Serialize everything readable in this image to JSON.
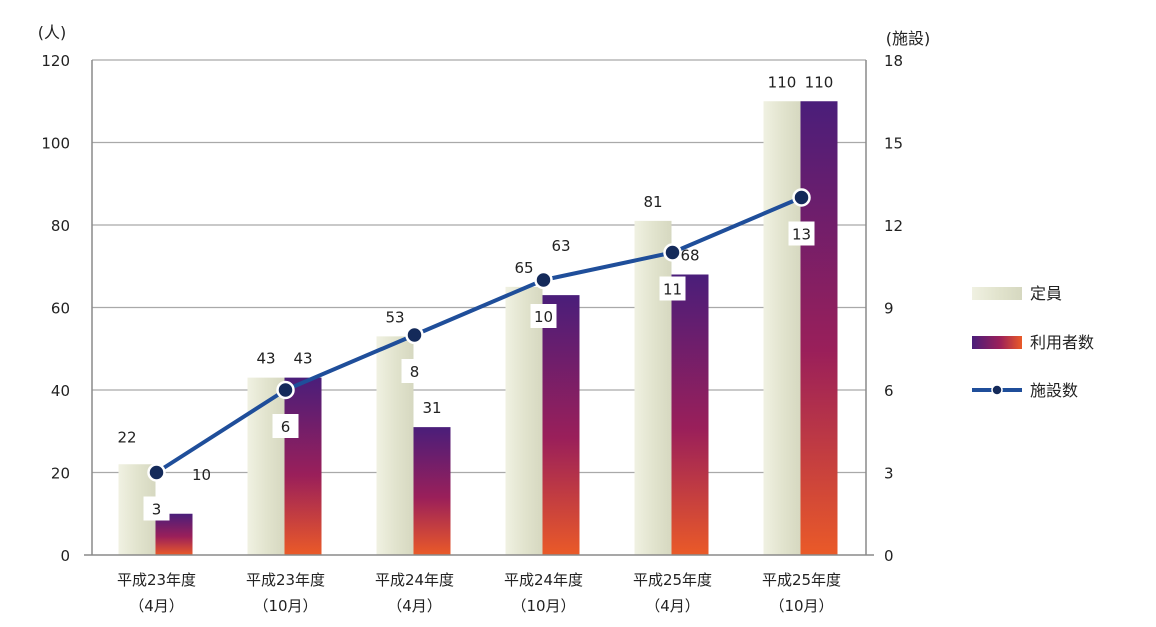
{
  "chart_data": {
    "type": "bar",
    "categories": [
      [
        "平成23年度",
        "（4月）"
      ],
      [
        "平成23年度",
        "（10月）"
      ],
      [
        "平成24年度",
        "（4月）"
      ],
      [
        "平成24年度",
        "（10月）"
      ],
      [
        "平成25年度",
        "（4月）"
      ],
      [
        "平成25年度",
        "（10月）"
      ]
    ],
    "y_left_label": "(人)",
    "y_right_label": "(施設)",
    "y_left_lim": [
      0,
      120
    ],
    "y_left_ticks": [
      0,
      20,
      40,
      60,
      80,
      100,
      120
    ],
    "y_right_lim": [
      0,
      18
    ],
    "y_right_ticks": [
      0,
      3,
      6,
      9,
      12,
      15,
      18
    ],
    "grid": true,
    "legend_position": "right",
    "series": [
      {
        "name": "定員",
        "kind": "bar",
        "axis": "left",
        "values": [
          22,
          43,
          53,
          65,
          81,
          110
        ],
        "color": "#e6e8d4"
      },
      {
        "name": "利用者数",
        "kind": "bar",
        "axis": "left",
        "values": [
          10,
          43,
          31,
          63,
          68,
          110
        ],
        "color_top": "#4a1e7a",
        "color_bottom": "#e84a2a"
      },
      {
        "name": "施設数",
        "kind": "line",
        "axis": "right",
        "values": [
          3,
          6,
          8,
          10,
          11,
          13
        ],
        "color": "#1f4e9a",
        "marker_color": "#142a5a"
      }
    ]
  }
}
